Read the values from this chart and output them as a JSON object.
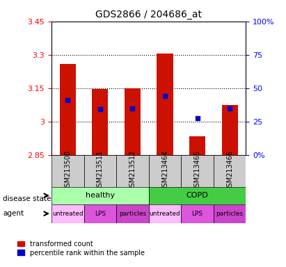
{
  "title": "GDS2866 / 204686_at",
  "samples": [
    "GSM213500",
    "GSM213511",
    "GSM213512",
    "GSM213464",
    "GSM213465",
    "GSM213466"
  ],
  "bar_values": [
    3.26,
    3.145,
    3.148,
    3.305,
    2.935,
    3.075
  ],
  "bar_bottom": 2.85,
  "percentile_values": [
    3.095,
    3.055,
    3.06,
    3.115,
    3.015,
    3.06
  ],
  "ylim_left": [
    2.85,
    3.45
  ],
  "ylim_right": [
    0,
    100
  ],
  "left_ticks": [
    2.85,
    3.0,
    3.15,
    3.3,
    3.45
  ],
  "left_tick_labels": [
    "2.85",
    "3",
    "3.15",
    "3.3",
    "3.45"
  ],
  "right_ticks": [
    0,
    25,
    50,
    75,
    100
  ],
  "right_tick_labels": [
    "0%",
    "25",
    "50",
    "75",
    "100%"
  ],
  "bar_color": "#cc1100",
  "percentile_color": "#0000cc",
  "disease_state_labels": [
    "healthy",
    "COPD"
  ],
  "disease_state_colors": [
    "#aaffaa",
    "#44dd44"
  ],
  "agent_labels": [
    "untreated",
    "LPS",
    "particles",
    "untreated",
    "LPS",
    "particles"
  ],
  "agent_colors": [
    "#ffaaff",
    "#dd66dd",
    "#cc44cc",
    "#ffaaff",
    "#dd66dd",
    "#cc44cc"
  ],
  "legend_label_red": "transformed count",
  "legend_label_blue": "percentile rank within the sample",
  "grid_color": "#000000",
  "background_color": "#ffffff",
  "xlabel_area_color": "#cccccc"
}
